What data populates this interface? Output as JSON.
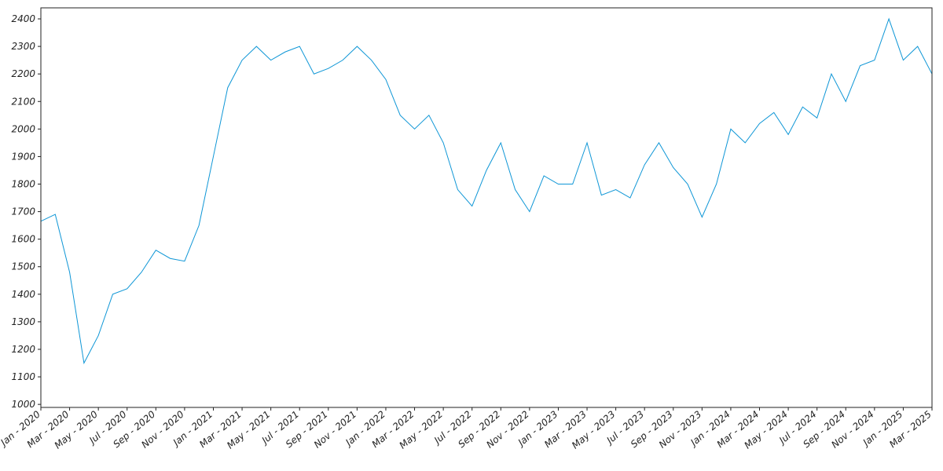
{
  "chart_data": {
    "type": "line",
    "x": [
      "2020-01",
      "2020-02",
      "2020-03",
      "2020-04",
      "2020-05",
      "2020-06",
      "2020-07",
      "2020-08",
      "2020-09",
      "2020-10",
      "2020-11",
      "2020-12",
      "2021-01",
      "2021-02",
      "2021-03",
      "2021-04",
      "2021-05",
      "2021-06",
      "2021-07",
      "2021-08",
      "2021-09",
      "2021-10",
      "2021-11",
      "2021-12",
      "2022-01",
      "2022-02",
      "2022-03",
      "2022-04",
      "2022-05",
      "2022-06",
      "2022-07",
      "2022-08",
      "2022-09",
      "2022-10",
      "2022-11",
      "2022-12",
      "2023-01",
      "2023-02",
      "2023-03",
      "2023-04",
      "2023-05",
      "2023-06",
      "2023-07",
      "2023-08",
      "2023-09",
      "2023-10",
      "2023-11",
      "2023-12",
      "2024-01",
      "2024-02",
      "2024-03",
      "2024-04",
      "2024-05",
      "2024-06",
      "2024-07",
      "2024-08",
      "2024-09",
      "2024-10",
      "2024-11",
      "2024-12",
      "2025-01",
      "2025-02",
      "2025-03"
    ],
    "series": [
      {
        "color": "#0e96d6",
        "values": [
          1665,
          1690,
          1480,
          1150,
          1250,
          1400,
          1420,
          1480,
          1560,
          1530,
          1520,
          1650,
          1900,
          2150,
          2250,
          2300,
          2250,
          2280,
          2300,
          2200,
          2220,
          2250,
          2300,
          2250,
          2180,
          2050,
          2000,
          2050,
          1950,
          1780,
          1720,
          1850,
          1950,
          1780,
          1700,
          1830,
          1800,
          1800,
          1950,
          1760,
          1780,
          1750,
          1870,
          1950,
          1860,
          1800,
          1680,
          1800,
          2000,
          1950,
          2020,
          2060,
          1980,
          2080,
          2040,
          2200,
          2100,
          2230,
          2250,
          2400,
          2250,
          2300,
          2200
        ]
      }
    ],
    "xlim": [
      "2020-01",
      "2025-03"
    ],
    "xticks": [
      {
        "value": "2020-01",
        "label": "Jan - 2020"
      },
      {
        "value": "2020-03",
        "label": "Mar - 2020"
      },
      {
        "value": "2020-05",
        "label": "May - 2020"
      },
      {
        "value": "2020-07",
        "label": "Jul - 2020"
      },
      {
        "value": "2020-09",
        "label": "Sep - 2020"
      },
      {
        "value": "2020-11",
        "label": "Nov - 2020"
      },
      {
        "value": "2021-01",
        "label": "Jan - 2021"
      },
      {
        "value": "2021-03",
        "label": "Mar - 2021"
      },
      {
        "value": "2021-05",
        "label": "May - 2021"
      },
      {
        "value": "2021-07",
        "label": "Jul - 2021"
      },
      {
        "value": "2021-09",
        "label": "Sep - 2021"
      },
      {
        "value": "2021-11",
        "label": "Nov - 2021"
      },
      {
        "value": "2022-01",
        "label": "Jan - 2022"
      },
      {
        "value": "2022-03",
        "label": "Mar - 2022"
      },
      {
        "value": "2022-05",
        "label": "May - 2022"
      },
      {
        "value": "2022-07",
        "label": "Jul - 2022"
      },
      {
        "value": "2022-09",
        "label": "Sep - 2022"
      },
      {
        "value": "2022-11",
        "label": "Nov - 2022"
      },
      {
        "value": "2023-01",
        "label": "Jan - 2023"
      },
      {
        "value": "2023-03",
        "label": "Mar - 2023"
      },
      {
        "value": "2023-05",
        "label": "May - 2023"
      },
      {
        "value": "2023-07",
        "label": "Jul - 2023"
      },
      {
        "value": "2023-09",
        "label": "Sep - 2023"
      },
      {
        "value": "2023-11",
        "label": "Nov - 2023"
      },
      {
        "value": "2024-01",
        "label": "Jan - 2024"
      },
      {
        "value": "2024-03",
        "label": "Mar - 2024"
      },
      {
        "value": "2024-05",
        "label": "May - 2024"
      },
      {
        "value": "2024-07",
        "label": "Jul - 2024"
      },
      {
        "value": "2024-09",
        "label": "Sep - 2024"
      },
      {
        "value": "2024-11",
        "label": "Nov - 2024"
      },
      {
        "value": "2025-01",
        "label": "Jan - 2025"
      },
      {
        "value": "2025-03",
        "label": "Mar - 2025"
      }
    ],
    "ylim": [
      989,
      2440
    ],
    "yticks": [
      1000,
      1100,
      1200,
      1300,
      1400,
      1500,
      1600,
      1700,
      1800,
      1900,
      2000,
      2100,
      2200,
      2300,
      2400
    ],
    "grid": false
  }
}
